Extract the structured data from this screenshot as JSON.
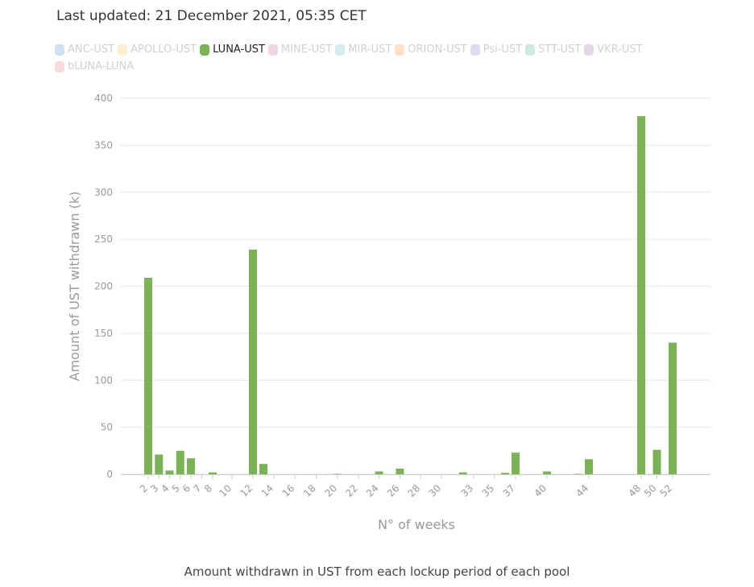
{
  "header": {
    "last_updated": "Last updated: 21 December 2021, 05:35 CET"
  },
  "legend": [
    {
      "label": "ANC-UST",
      "color": "#cfe0ee",
      "active": false
    },
    {
      "label": "APOLLO-UST",
      "color": "#fdf0d2",
      "active": false
    },
    {
      "label": "LUNA-UST",
      "color": "#7ab356",
      "active": true
    },
    {
      "label": "MINE-UST",
      "color": "#efd6e4",
      "active": false
    },
    {
      "label": "MIR-UST",
      "color": "#d3ecef",
      "active": false
    },
    {
      "label": "ORION-UST",
      "color": "#fde0c8",
      "active": false
    },
    {
      "label": "Psi-UST",
      "color": "#dcdcee",
      "active": false
    },
    {
      "label": "STT-UST",
      "color": "#cfeadd",
      "active": false
    },
    {
      "label": "VKR-UST",
      "color": "#e4d6e2",
      "active": false
    },
    {
      "label": "bLUNA-LUNA",
      "color": "#f7dcd9",
      "active": false
    }
  ],
  "caption": "Amount withdrawn in UST from each lockup period of each pool",
  "chart_data": {
    "type": "bar",
    "title": "",
    "xlabel": "N° of weeks",
    "ylabel": "Amount of UST withdrawn (k)",
    "ylim": [
      0,
      400
    ],
    "yticks": [
      0,
      50,
      100,
      150,
      200,
      250,
      300,
      350,
      400
    ],
    "grid": true,
    "series": [
      {
        "name": "LUNA-UST",
        "color": "#7ab356",
        "x": [
          2,
          3,
          4,
          5,
          6,
          7,
          8,
          10,
          12,
          13,
          14,
          16,
          18,
          20,
          22,
          24,
          26,
          28,
          30,
          32,
          33,
          35,
          36,
          37,
          40,
          43,
          44,
          48,
          50,
          52
        ],
        "values": [
          209,
          21,
          4,
          25,
          17,
          0,
          2,
          0,
          239,
          11,
          0,
          0,
          0,
          0.5,
          0,
          3,
          6,
          0,
          0,
          2,
          0,
          0,
          1.5,
          23,
          3,
          0.5,
          16,
          381,
          26,
          140
        ]
      }
    ],
    "xticks": [
      2,
      3,
      4,
      5,
      6,
      7,
      8,
      10,
      12,
      14,
      16,
      18,
      20,
      22,
      24,
      26,
      28,
      30,
      33,
      35,
      37,
      40,
      44,
      48,
      50,
      52
    ]
  }
}
